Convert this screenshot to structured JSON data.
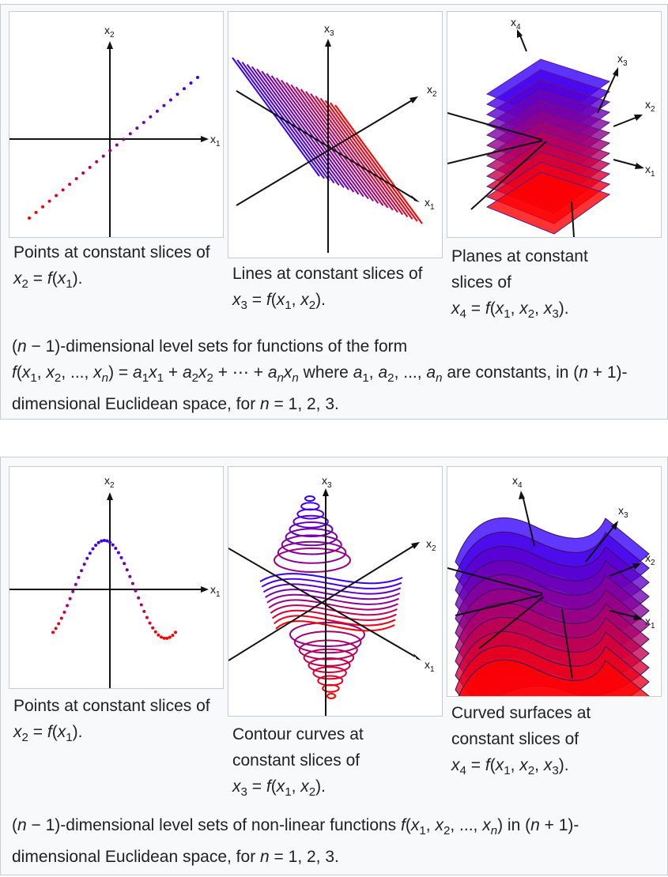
{
  "top_gallery": {
    "panels": [
      {
        "caption_text": "Points at constant slices of",
        "formula": "x2 = f(x1)."
      },
      {
        "caption_text": "Lines at constant slices of",
        "formula": "x3 = f(x1, x2)."
      },
      {
        "caption_text": "Planes at constant slices of",
        "formula": "x4 = f(x1, x2, x3)."
      }
    ],
    "caption": "(n − 1)-dimensional level sets for functions of the form f(x1, x2, ..., xn) = a1x1 + a2x2 + ⋯ + anxn where a1, a2, ..., an are constants, in (n + 1)-dimensional Euclidean space, for n = 1, 2, 3."
  },
  "bottom_gallery": {
    "panels": [
      {
        "caption_text": "Points at constant slices of",
        "formula": "x2 = f(x1)."
      },
      {
        "caption_text": "Contour curves at constant slices of",
        "formula": "x3 = f(x1, x2)."
      },
      {
        "caption_text": "Curved surfaces at constant slices of",
        "formula": "x4 = f(x1, x2, x3)."
      }
    ],
    "caption": "(n − 1)-dimensional level sets of non-linear functions f(x1, x2, ..., xn) in (n + 1)-dimensional Euclidean space, for n = 1, 2, 3."
  },
  "axis_labels": {
    "x1": "x1",
    "x2": "x2",
    "x3": "x3",
    "x4": "x4"
  },
  "colors": {
    "start": "#ff0000",
    "end": "#3300ff",
    "axis": "#111111",
    "panel_border": "#c8ccd1",
    "gallery_bg": "#f8f9fa"
  }
}
